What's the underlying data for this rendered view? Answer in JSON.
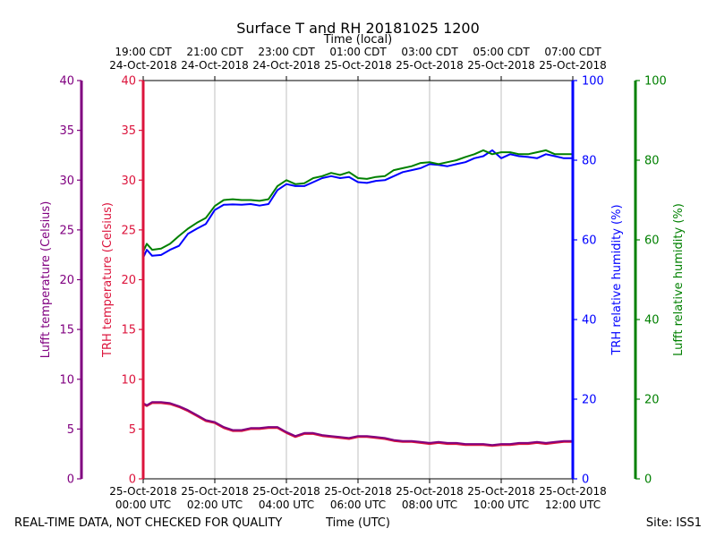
{
  "chart_data": {
    "type": "line",
    "title": "Surface T and RH 20181025 1200",
    "top_xlabel": "Time (local)",
    "xlabel": "Time (UTC)",
    "footer_left": "REAL-TIME DATA, NOT CHECKED FOR QUALITY",
    "footer_right": "Site: ISS1",
    "xlim": [
      0,
      12
    ],
    "grid": true,
    "bottom_ticks": [
      {
        "x": 0,
        "line1": "25-Oct-2018",
        "line2": "00:00 UTC"
      },
      {
        "x": 2,
        "line1": "25-Oct-2018",
        "line2": "02:00 UTC"
      },
      {
        "x": 4,
        "line1": "25-Oct-2018",
        "line2": "04:00 UTC"
      },
      {
        "x": 6,
        "line1": "25-Oct-2018",
        "line2": "06:00 UTC"
      },
      {
        "x": 8,
        "line1": "25-Oct-2018",
        "line2": "08:00 UTC"
      },
      {
        "x": 10,
        "line1": "25-Oct-2018",
        "line2": "10:00 UTC"
      },
      {
        "x": 12,
        "line1": "25-Oct-2018",
        "line2": "12:00 UTC"
      }
    ],
    "top_ticks": [
      {
        "x": 0,
        "line1": "19:00 CDT",
        "line2": "24-Oct-2018"
      },
      {
        "x": 2,
        "line1": "21:00 CDT",
        "line2": "24-Oct-2018"
      },
      {
        "x": 4,
        "line1": "23:00 CDT",
        "line2": "24-Oct-2018"
      },
      {
        "x": 6,
        "line1": "01:00 CDT",
        "line2": "25-Oct-2018"
      },
      {
        "x": 8,
        "line1": "03:00 CDT",
        "line2": "25-Oct-2018"
      },
      {
        "x": 10,
        "line1": "05:00 CDT",
        "line2": "25-Oct-2018"
      },
      {
        "x": 12,
        "line1": "07:00 CDT",
        "line2": "25-Oct-2018"
      }
    ],
    "axes": {
      "lufft_temp": {
        "label": "Lufft temperature (Celsius)",
        "ylim": [
          0,
          40
        ],
        "ticks": [
          0,
          5,
          10,
          15,
          20,
          25,
          30,
          35,
          40
        ],
        "color": "#800080"
      },
      "trh_temp": {
        "label": "TRH temperature (Celsius)",
        "ylim": [
          0,
          40
        ],
        "ticks": [
          0,
          5,
          10,
          15,
          20,
          25,
          30,
          35,
          40
        ],
        "color": "#dc143c"
      },
      "trh_rh": {
        "label": "TRH relative humidity (%)",
        "ylim": [
          0,
          100
        ],
        "ticks": [
          0,
          20,
          40,
          60,
          80,
          100
        ],
        "color": "#0000ff"
      },
      "lufft_rh": {
        "label": "Lufft relative humidity (%)",
        "ylim": [
          0,
          100
        ],
        "ticks": [
          0,
          20,
          40,
          60,
          80,
          100
        ],
        "color": "#008000"
      }
    },
    "series": [
      {
        "name": "TRH temperature",
        "axis": "trh_temp",
        "color": "#dc143c",
        "x": [
          0,
          0.1,
          0.25,
          0.5,
          0.75,
          1.0,
          1.25,
          1.5,
          1.75,
          2.0,
          2.25,
          2.5,
          2.75,
          3.0,
          3.25,
          3.5,
          3.75,
          4.0,
          4.25,
          4.5,
          4.75,
          5.0,
          5.25,
          5.5,
          5.75,
          6.0,
          6.25,
          6.5,
          6.75,
          7.0,
          7.25,
          7.5,
          7.75,
          8.0,
          8.25,
          8.5,
          8.75,
          9.0,
          9.25,
          9.5,
          9.75,
          10.0,
          10.25,
          10.5,
          10.75,
          11.0,
          11.25,
          11.5,
          11.75,
          12.0
        ],
        "values": [
          7.5,
          7.3,
          7.6,
          7.6,
          7.5,
          7.2,
          6.8,
          6.3,
          5.8,
          5.6,
          5.1,
          4.8,
          4.8,
          5.0,
          5.0,
          5.1,
          5.1,
          4.6,
          4.2,
          4.5,
          4.5,
          4.3,
          4.2,
          4.1,
          4.0,
          4.2,
          4.2,
          4.1,
          4.0,
          3.8,
          3.7,
          3.7,
          3.6,
          3.5,
          3.6,
          3.5,
          3.5,
          3.4,
          3.4,
          3.4,
          3.3,
          3.4,
          3.4,
          3.5,
          3.5,
          3.6,
          3.5,
          3.6,
          3.7,
          3.7
        ]
      },
      {
        "name": "Lufft temperature",
        "axis": "lufft_temp",
        "color": "#800080",
        "x": [
          0,
          0.1,
          0.25,
          0.5,
          0.75,
          1.0,
          1.25,
          1.5,
          1.75,
          2.0,
          2.25,
          2.5,
          2.75,
          3.0,
          3.25,
          3.5,
          3.75,
          4.0,
          4.25,
          4.5,
          4.75,
          5.0,
          5.25,
          5.5,
          5.75,
          6.0,
          6.25,
          6.5,
          6.75,
          7.0,
          7.25,
          7.5,
          7.75,
          8.0,
          8.25,
          8.5,
          8.75,
          9.0,
          9.25,
          9.5,
          9.75,
          10.0,
          10.25,
          10.5,
          10.75,
          11.0,
          11.25,
          11.5,
          11.75,
          12.0
        ],
        "values": [
          7.6,
          7.4,
          7.7,
          7.7,
          7.6,
          7.3,
          6.9,
          6.4,
          5.9,
          5.7,
          5.2,
          4.9,
          4.9,
          5.1,
          5.1,
          5.2,
          5.2,
          4.7,
          4.3,
          4.6,
          4.6,
          4.4,
          4.3,
          4.2,
          4.1,
          4.3,
          4.3,
          4.2,
          4.1,
          3.9,
          3.8,
          3.8,
          3.7,
          3.6,
          3.7,
          3.6,
          3.6,
          3.5,
          3.5,
          3.5,
          3.4,
          3.5,
          3.5,
          3.6,
          3.6,
          3.7,
          3.6,
          3.7,
          3.8,
          3.8
        ]
      },
      {
        "name": "TRH relative humidity",
        "axis": "trh_rh",
        "color": "#0000ff",
        "x": [
          0,
          0.1,
          0.25,
          0.5,
          0.75,
          1.0,
          1.25,
          1.5,
          1.75,
          2.0,
          2.25,
          2.5,
          2.75,
          3.0,
          3.25,
          3.5,
          3.75,
          4.0,
          4.25,
          4.5,
          4.75,
          5.0,
          5.25,
          5.5,
          5.75,
          6.0,
          6.25,
          6.5,
          6.75,
          7.0,
          7.25,
          7.5,
          7.75,
          8.0,
          8.25,
          8.5,
          8.75,
          9.0,
          9.25,
          9.5,
          9.75,
          10.0,
          10.25,
          10.5,
          10.75,
          11.0,
          11.25,
          11.5,
          11.75,
          12.0
        ],
        "values": [
          55.5,
          57.5,
          56.0,
          56.2,
          57.5,
          58.5,
          61.5,
          62.8,
          64.0,
          67.5,
          68.8,
          68.9,
          68.8,
          69.0,
          68.6,
          69.0,
          72.5,
          74.0,
          73.5,
          73.5,
          74.5,
          75.5,
          76.0,
          75.5,
          75.8,
          74.5,
          74.3,
          74.8,
          75.0,
          76.0,
          77.0,
          77.5,
          78.0,
          79.0,
          78.8,
          78.5,
          79.0,
          79.5,
          80.5,
          81.0,
          82.5,
          80.5,
          81.5,
          81.0,
          80.8,
          80.5,
          81.5,
          81.0,
          80.5,
          80.5
        ]
      },
      {
        "name": "Lufft relative humidity",
        "axis": "lufft_rh",
        "color": "#008000",
        "x": [
          0,
          0.1,
          0.25,
          0.5,
          0.75,
          1.0,
          1.25,
          1.5,
          1.75,
          2.0,
          2.25,
          2.5,
          2.75,
          3.0,
          3.25,
          3.5,
          3.75,
          4.0,
          4.25,
          4.5,
          4.75,
          5.0,
          5.25,
          5.5,
          5.75,
          6.0,
          6.25,
          6.5,
          6.75,
          7.0,
          7.25,
          7.5,
          7.75,
          8.0,
          8.25,
          8.5,
          8.75,
          9.0,
          9.25,
          9.5,
          9.75,
          10.0,
          10.25,
          10.5,
          10.75,
          11.0,
          11.25,
          11.5,
          11.75,
          12.0
        ],
        "values": [
          57.0,
          59.0,
          57.5,
          57.8,
          59.0,
          61.0,
          62.8,
          64.3,
          65.5,
          68.5,
          70.0,
          70.2,
          70.0,
          70.0,
          69.8,
          70.2,
          73.5,
          75.0,
          74.0,
          74.2,
          75.5,
          76.0,
          76.8,
          76.3,
          77.0,
          75.5,
          75.3,
          75.8,
          76.0,
          77.5,
          78.0,
          78.5,
          79.3,
          79.5,
          79.0,
          79.5,
          80.0,
          80.8,
          81.5,
          82.5,
          81.5,
          82.0,
          82.0,
          81.5,
          81.5,
          82.0,
          82.5,
          81.5,
          81.5,
          81.5
        ]
      }
    ]
  }
}
